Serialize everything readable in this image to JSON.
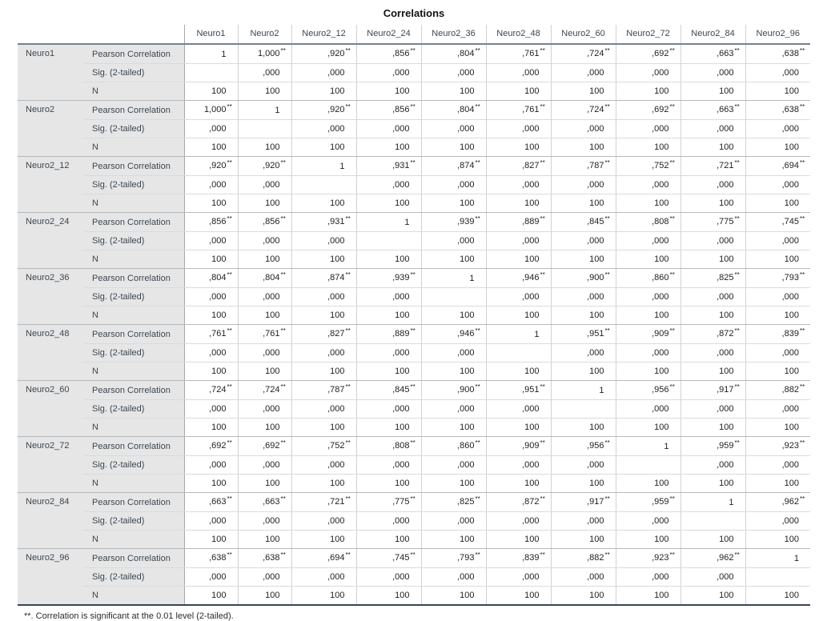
{
  "chart_data": {
    "type": "table",
    "title": "Correlations",
    "variables": [
      "Neuro1",
      "Neuro2",
      "Neuro2_12",
      "Neuro2_24",
      "Neuro2_36",
      "Neuro2_48",
      "Neuro2_60",
      "Neuro2_72",
      "Neuro2_84",
      "Neuro2_96"
    ],
    "statistics": [
      "Pearson Correlation",
      "Sig. (2-tailed)",
      "N"
    ],
    "pearson": [
      [
        "1",
        "1,000**",
        ",920**",
        ",856**",
        ",804**",
        ",761**",
        ",724**",
        ",692**",
        ",663**",
        ",638**"
      ],
      [
        "1,000**",
        "1",
        ",920**",
        ",856**",
        ",804**",
        ",761**",
        ",724**",
        ",692**",
        ",663**",
        ",638**"
      ],
      [
        ",920**",
        ",920**",
        "1",
        ",931**",
        ",874**",
        ",827**",
        ",787**",
        ",752**",
        ",721**",
        ",694**"
      ],
      [
        ",856**",
        ",856**",
        ",931**",
        "1",
        ",939**",
        ",889**",
        ",845**",
        ",808**",
        ",775**",
        ",745**"
      ],
      [
        ",804**",
        ",804**",
        ",874**",
        ",939**",
        "1",
        ",946**",
        ",900**",
        ",860**",
        ",825**",
        ",793**"
      ],
      [
        ",761**",
        ",761**",
        ",827**",
        ",889**",
        ",946**",
        "1",
        ",951**",
        ",909**",
        ",872**",
        ",839**"
      ],
      [
        ",724**",
        ",724**",
        ",787**",
        ",845**",
        ",900**",
        ",951**",
        "1",
        ",956**",
        ",917**",
        ",882**"
      ],
      [
        ",692**",
        ",692**",
        ",752**",
        ",808**",
        ",860**",
        ",909**",
        ",956**",
        "1",
        ",959**",
        ",923**"
      ],
      [
        ",663**",
        ",663**",
        ",721**",
        ",775**",
        ",825**",
        ",872**",
        ",917**",
        ",959**",
        "1",
        ",962**"
      ],
      [
        ",638**",
        ",638**",
        ",694**",
        ",745**",
        ",793**",
        ",839**",
        ",882**",
        ",923**",
        ",962**",
        "1"
      ]
    ],
    "sig": [
      [
        "",
        ",000",
        ",000",
        ",000",
        ",000",
        ",000",
        ",000",
        ",000",
        ",000",
        ",000"
      ],
      [
        ",000",
        "",
        ",000",
        ",000",
        ",000",
        ",000",
        ",000",
        ",000",
        ",000",
        ",000"
      ],
      [
        ",000",
        ",000",
        "",
        ",000",
        ",000",
        ",000",
        ",000",
        ",000",
        ",000",
        ",000"
      ],
      [
        ",000",
        ",000",
        ",000",
        "",
        ",000",
        ",000",
        ",000",
        ",000",
        ",000",
        ",000"
      ],
      [
        ",000",
        ",000",
        ",000",
        ",000",
        "",
        ",000",
        ",000",
        ",000",
        ",000",
        ",000"
      ],
      [
        ",000",
        ",000",
        ",000",
        ",000",
        ",000",
        "",
        ",000",
        ",000",
        ",000",
        ",000"
      ],
      [
        ",000",
        ",000",
        ",000",
        ",000",
        ",000",
        ",000",
        "",
        ",000",
        ",000",
        ",000"
      ],
      [
        ",000",
        ",000",
        ",000",
        ",000",
        ",000",
        ",000",
        ",000",
        "",
        ",000",
        ",000"
      ],
      [
        ",000",
        ",000",
        ",000",
        ",000",
        ",000",
        ",000",
        ",000",
        ",000",
        "",
        ",000"
      ],
      [
        ",000",
        ",000",
        ",000",
        ",000",
        ",000",
        ",000",
        ",000",
        ",000",
        ",000",
        ""
      ]
    ],
    "n": [
      [
        "100",
        "100",
        "100",
        "100",
        "100",
        "100",
        "100",
        "100",
        "100",
        "100"
      ],
      [
        "100",
        "100",
        "100",
        "100",
        "100",
        "100",
        "100",
        "100",
        "100",
        "100"
      ],
      [
        "100",
        "100",
        "100",
        "100",
        "100",
        "100",
        "100",
        "100",
        "100",
        "100"
      ],
      [
        "100",
        "100",
        "100",
        "100",
        "100",
        "100",
        "100",
        "100",
        "100",
        "100"
      ],
      [
        "100",
        "100",
        "100",
        "100",
        "100",
        "100",
        "100",
        "100",
        "100",
        "100"
      ],
      [
        "100",
        "100",
        "100",
        "100",
        "100",
        "100",
        "100",
        "100",
        "100",
        "100"
      ],
      [
        "100",
        "100",
        "100",
        "100",
        "100",
        "100",
        "100",
        "100",
        "100",
        "100"
      ],
      [
        "100",
        "100",
        "100",
        "100",
        "100",
        "100",
        "100",
        "100",
        "100",
        "100"
      ],
      [
        "100",
        "100",
        "100",
        "100",
        "100",
        "100",
        "100",
        "100",
        "100",
        "100"
      ],
      [
        "100",
        "100",
        "100",
        "100",
        "100",
        "100",
        "100",
        "100",
        "100",
        "100"
      ]
    ],
    "significance_flag": "**",
    "footnote": "**. Correlation is significant at the 0.01 level (2-tailed)."
  },
  "colors": {
    "stub_bg": "#e6e6e6",
    "header_rule": "#76828e",
    "bottom_rule": "#3a4550",
    "group_rule": "#b3b9be",
    "row_rule": "#d8dbde",
    "col_rule": "#ced2d6",
    "strong_col_rule": "#a2aab2",
    "label_text": "#3b4752",
    "value_text": "#222222"
  }
}
